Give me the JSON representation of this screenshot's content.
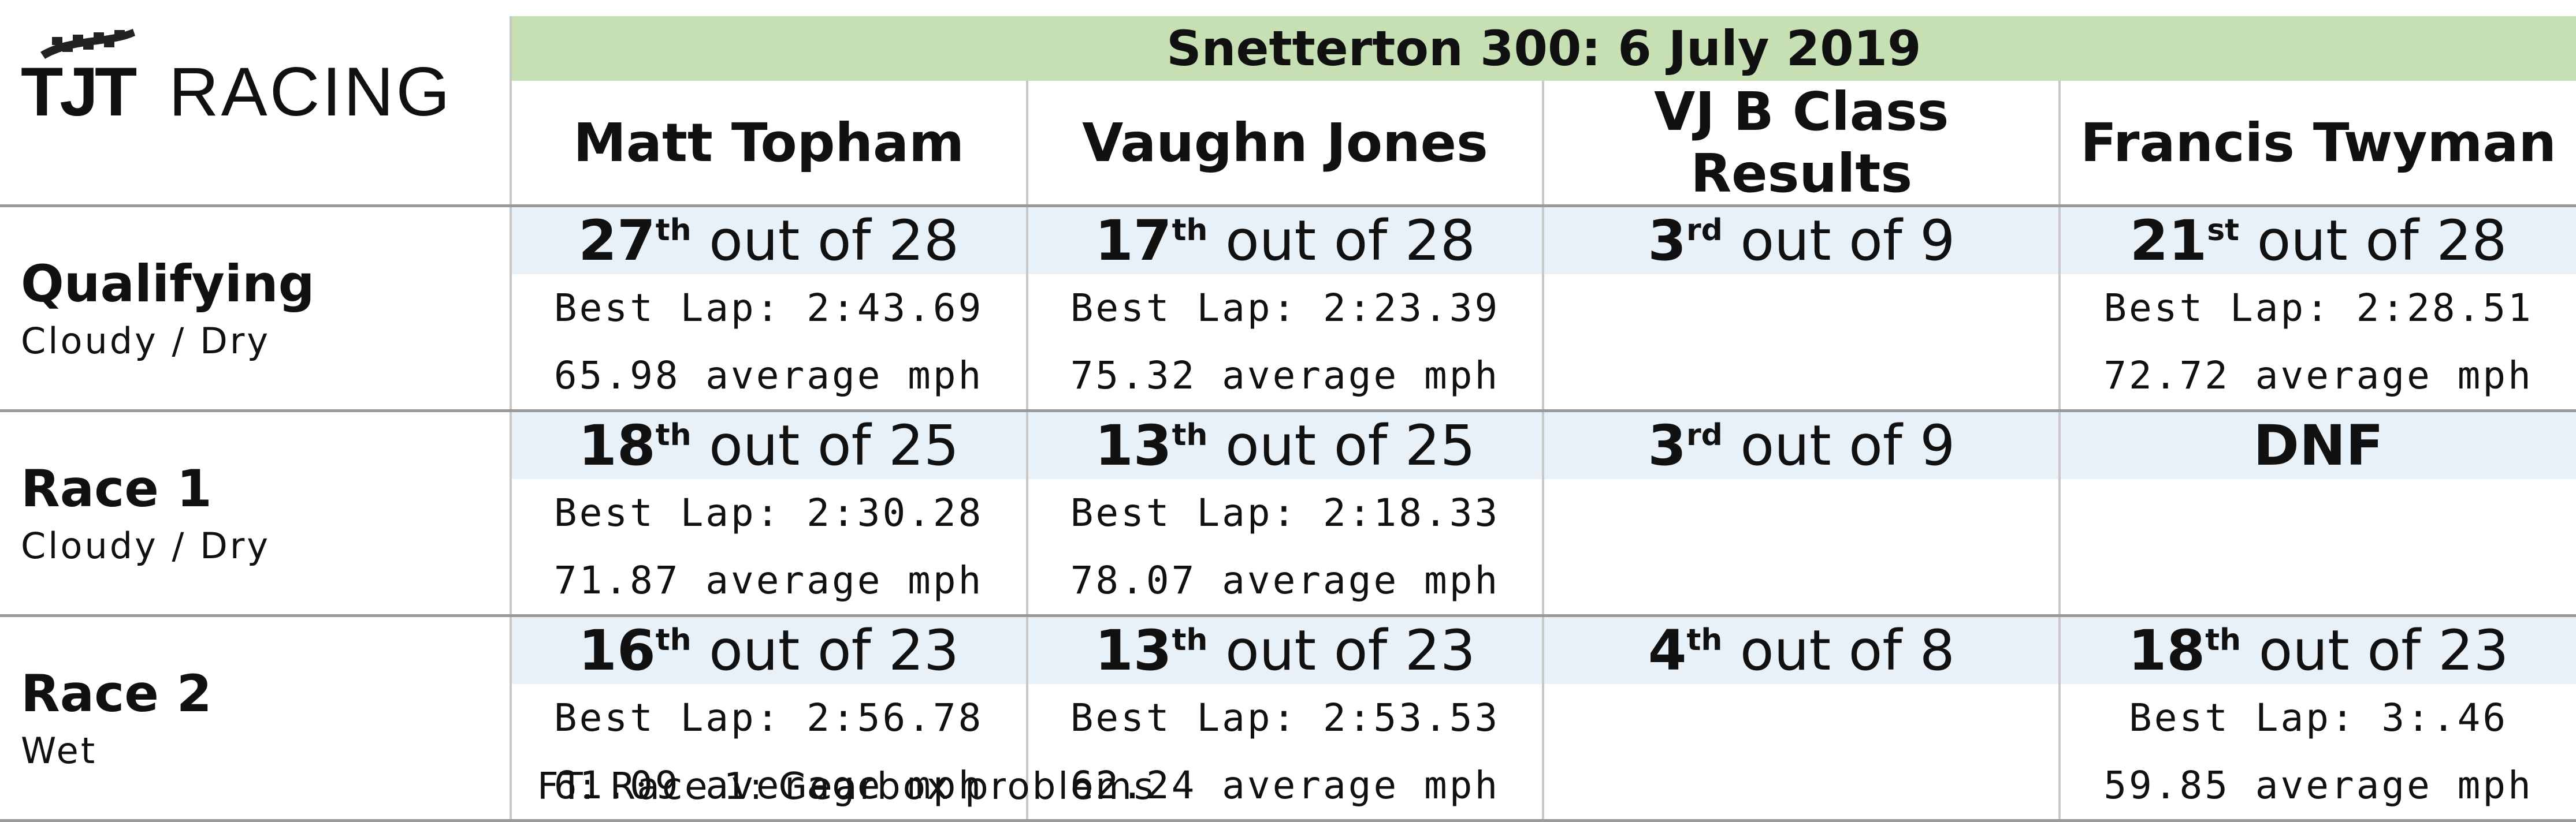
{
  "brand": {
    "logo_text_a": "TJT",
    "logo_text_b": "RACING"
  },
  "event": {
    "title": "Snetterton 300: 6 July 2019"
  },
  "drivers": [
    "Matt Topham",
    "Vaughn Jones",
    "VJ B Class Results",
    "Francis Twyman"
  ],
  "sessions": [
    {
      "name": "Qualifying",
      "conditions": "Cloudy / Dry",
      "results": [
        {
          "rank": "27",
          "suffix": "th",
          "of": " out of 28",
          "lap": "Best Lap: 2:43.69",
          "mph": "65.98 average mph"
        },
        {
          "rank": "17",
          "suffix": "th",
          "of": " out of 28",
          "lap": "Best Lap: 2:23.39",
          "mph": "75.32 average mph"
        },
        {
          "rank": "3",
          "suffix": "rd",
          "of": " out of 9",
          "lap": "",
          "mph": ""
        },
        {
          "rank": "21",
          "suffix": "st",
          "of": " out of 28",
          "lap": "Best Lap: 2:28.51",
          "mph": "72.72 average mph"
        }
      ]
    },
    {
      "name": "Race 1",
      "conditions": "Cloudy / Dry",
      "results": [
        {
          "rank": "18",
          "suffix": "th",
          "of": " out of 25",
          "lap": "Best Lap: 2:30.28",
          "mph": "71.87 average mph"
        },
        {
          "rank": "13",
          "suffix": "th",
          "of": " out of 25",
          "lap": "Best Lap: 2:18.33",
          "mph": "78.07 average mph"
        },
        {
          "rank": "3",
          "suffix": "rd",
          "of": " out of 9",
          "lap": "",
          "mph": ""
        },
        {
          "rank": "DNF",
          "suffix": "",
          "of": "",
          "lap": "",
          "mph": ""
        }
      ]
    },
    {
      "name": "Race 2",
      "conditions": "Wet",
      "results": [
        {
          "rank": "16",
          "suffix": "th",
          "of": " out of 23",
          "lap": "Best Lap: 2:56.78",
          "mph": "61.09 average mph"
        },
        {
          "rank": "13",
          "suffix": "th",
          "of": " out of 23",
          "lap": "Best Lap: 2:53.53",
          "mph": "62.24 average mph"
        },
        {
          "rank": "4",
          "suffix": "th",
          "of": " out of 8",
          "lap": "",
          "mph": ""
        },
        {
          "rank": "18",
          "suffix": "th",
          "of": " out of 23",
          "lap": "Best Lap: 3:.46",
          "mph": "59.85 average mph"
        }
      ]
    }
  ],
  "footnote": "FT: Race 1: Gearbox problems",
  "colors": {
    "title_bg": "#c6e0b4",
    "position_bg": "#e9f1f8",
    "grid": "#c8c8c8"
  }
}
